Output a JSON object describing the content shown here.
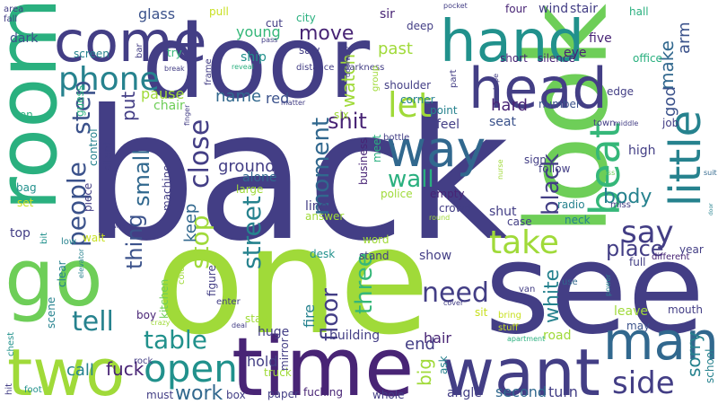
{
  "background": "#ffffff",
  "palette": {
    "indigo": "#433e85",
    "violet": "#482475",
    "blue": "#3b528b",
    "steel": "#31688e",
    "teal": "#26828e",
    "sea": "#21918c",
    "green": "#2ab07f",
    "mint": "#35b779",
    "lime": "#6ece58",
    "yellowgreen": "#a0da39",
    "yellow": "#c8e020"
  },
  "words": [
    {
      "text": "back",
      "color": "indigo"
    },
    {
      "text": "one",
      "color": "yellowgreen"
    },
    {
      "text": "door",
      "color": "indigo"
    },
    {
      "text": "see",
      "color": "indigo"
    },
    {
      "text": "look",
      "color": "lime"
    },
    {
      "text": "room",
      "color": "green"
    },
    {
      "text": "time",
      "color": "violet"
    },
    {
      "text": "want",
      "color": "indigo"
    },
    {
      "text": "hand",
      "color": "sea"
    },
    {
      "text": "go",
      "color": "lime"
    },
    {
      "text": "two",
      "color": "yellowgreen"
    },
    {
      "text": "head",
      "color": "indigo"
    },
    {
      "text": "come",
      "color": "indigo"
    },
    {
      "text": "man",
      "color": "steel"
    },
    {
      "text": "way",
      "color": "steel"
    },
    {
      "text": "open",
      "color": "sea"
    },
    {
      "text": "little",
      "color": "teal"
    },
    {
      "text": "beat",
      "color": "mint"
    },
    {
      "text": "take",
      "color": "yellowgreen"
    },
    {
      "text": "phone",
      "color": "teal"
    },
    {
      "text": "people",
      "color": "blue"
    },
    {
      "text": "step",
      "color": "blue"
    },
    {
      "text": "let",
      "color": "yellowgreen"
    },
    {
      "text": "say",
      "color": "indigo"
    },
    {
      "text": "side",
      "color": "indigo"
    },
    {
      "text": "tell",
      "color": "teal"
    },
    {
      "text": "need",
      "color": "indigo"
    },
    {
      "text": "table",
      "color": "sea"
    },
    {
      "text": "street",
      "color": "teal"
    },
    {
      "text": "floor",
      "color": "indigo"
    },
    {
      "text": "three",
      "color": "mint"
    },
    {
      "text": "wall",
      "color": "green"
    },
    {
      "text": "moment",
      "color": "steel"
    },
    {
      "text": "close",
      "color": "indigo"
    },
    {
      "text": "stop",
      "color": "yellowgreen"
    },
    {
      "text": "small",
      "color": "steel"
    },
    {
      "text": "thing",
      "color": "blue"
    },
    {
      "text": "put",
      "color": "indigo"
    },
    {
      "text": "place",
      "color": "indigo"
    },
    {
      "text": "body",
      "color": "teal"
    },
    {
      "text": "black",
      "color": "indigo"
    },
    {
      "text": "white",
      "color": "teal"
    },
    {
      "text": "make",
      "color": "steel"
    },
    {
      "text": "god",
      "color": "blue"
    },
    {
      "text": "arm",
      "color": "blue"
    },
    {
      "text": "sorry",
      "color": "teal"
    },
    {
      "text": "work",
      "color": "steel"
    },
    {
      "text": "fuck",
      "color": "violet"
    },
    {
      "text": "call",
      "color": "teal"
    },
    {
      "text": "shit",
      "color": "violet"
    },
    {
      "text": "watch",
      "color": "yellowgreen"
    },
    {
      "text": "move",
      "color": "violet"
    },
    {
      "text": "past",
      "color": "yellowgreen"
    },
    {
      "text": "name",
      "color": "steel"
    },
    {
      "text": "keep",
      "color": "steel"
    },
    {
      "text": "ground",
      "color": "indigo"
    },
    {
      "text": "young",
      "color": "mint"
    },
    {
      "text": "glass",
      "color": "blue"
    },
    {
      "text": "red",
      "color": "blue"
    },
    {
      "text": "hard",
      "color": "violet"
    },
    {
      "text": "pause",
      "color": "yellowgreen"
    },
    {
      "text": "chair",
      "color": "lime"
    },
    {
      "text": "hold",
      "color": "indigo"
    },
    {
      "text": "end",
      "color": "indigo"
    },
    {
      "text": "hair",
      "color": "violet"
    },
    {
      "text": "big",
      "color": "yellowgreen"
    },
    {
      "text": "fire",
      "color": "teal"
    },
    {
      "text": "second",
      "color": "steel"
    },
    {
      "text": "turn",
      "color": "indigo"
    },
    {
      "text": "wind",
      "color": "indigo"
    },
    {
      "text": "stair",
      "color": "indigo"
    },
    {
      "text": "four",
      "color": "violet"
    },
    {
      "text": "eye",
      "color": "violet"
    },
    {
      "text": "five",
      "color": "violet"
    },
    {
      "text": "hall",
      "color": "green"
    },
    {
      "text": "office",
      "color": "green"
    },
    {
      "text": "silence",
      "color": "violet"
    },
    {
      "text": "short",
      "color": "violet"
    },
    {
      "text": "edge",
      "color": "indigo"
    },
    {
      "text": "high",
      "color": "indigo"
    },
    {
      "text": "job",
      "color": "indigo"
    },
    {
      "text": "radio",
      "color": "teal"
    },
    {
      "text": "neck",
      "color": "teal"
    },
    {
      "text": "seat",
      "color": "blue"
    },
    {
      "text": "number",
      "color": "blue"
    },
    {
      "text": "feel",
      "color": "indigo"
    },
    {
      "text": "point",
      "color": "teal"
    },
    {
      "text": "corner",
      "color": "teal"
    },
    {
      "text": "shoulder",
      "color": "indigo"
    },
    {
      "text": "deep",
      "color": "indigo"
    },
    {
      "text": "sir",
      "color": "violet"
    },
    {
      "text": "cut",
      "color": "indigo"
    },
    {
      "text": "city",
      "color": "green"
    },
    {
      "text": "pull",
      "color": "yellow"
    },
    {
      "text": "saw",
      "color": "indigo"
    },
    {
      "text": "ship",
      "color": "sea"
    },
    {
      "text": "try",
      "color": "mint"
    },
    {
      "text": "screen",
      "color": "teal"
    },
    {
      "text": "dark",
      "color": "blue"
    },
    {
      "text": "ten",
      "color": "green"
    },
    {
      "text": "guess",
      "color": "green"
    },
    {
      "text": "bag",
      "color": "sea"
    },
    {
      "text": "set",
      "color": "yellow"
    },
    {
      "text": "top",
      "color": "indigo"
    },
    {
      "text": "wait",
      "color": "yellow"
    },
    {
      "text": "boy",
      "color": "violet"
    },
    {
      "text": "kitchen",
      "color": "lime"
    },
    {
      "text": "machine",
      "color": "indigo"
    },
    {
      "text": "silent",
      "color": "indigo"
    },
    {
      "text": "piece",
      "color": "indigo"
    },
    {
      "text": "control",
      "color": "teal"
    },
    {
      "text": "scene",
      "color": "teal"
    },
    {
      "text": "clear",
      "color": "teal"
    },
    {
      "text": "large",
      "color": "yellowgreen"
    },
    {
      "text": "alone",
      "color": "steel"
    },
    {
      "text": "line",
      "color": "indigo"
    },
    {
      "text": "answer",
      "color": "yellowgreen"
    },
    {
      "text": "police",
      "color": "yellowgreen"
    },
    {
      "text": "empty",
      "color": "violet"
    },
    {
      "text": "crowd",
      "color": "indigo"
    },
    {
      "text": "shut",
      "color": "indigo"
    },
    {
      "text": "case",
      "color": "indigo"
    },
    {
      "text": "sign",
      "color": "indigo"
    },
    {
      "text": "follow",
      "color": "indigo"
    },
    {
      "text": "meet",
      "color": "green"
    },
    {
      "text": "business",
      "color": "violet"
    },
    {
      "text": "building",
      "color": "indigo"
    },
    {
      "text": "word",
      "color": "yellowgreen"
    },
    {
      "text": "stand",
      "color": "indigo"
    },
    {
      "text": "show",
      "color": "indigo"
    },
    {
      "text": "desk",
      "color": "sea"
    },
    {
      "text": "stay",
      "color": "yellowgreen"
    },
    {
      "text": "huge",
      "color": "indigo"
    },
    {
      "text": "truck",
      "color": "yellowgreen"
    },
    {
      "text": "mirror",
      "color": "indigo"
    },
    {
      "text": "box",
      "color": "indigo"
    },
    {
      "text": "paper",
      "color": "indigo"
    },
    {
      "text": "fucking",
      "color": "violet"
    },
    {
      "text": "whole",
      "color": "indigo"
    },
    {
      "text": "angle",
      "color": "indigo"
    },
    {
      "text": "ask",
      "color": "teal"
    },
    {
      "text": "road",
      "color": "yellowgreen"
    },
    {
      "text": "leave",
      "color": "yellowgreen"
    },
    {
      "text": "may",
      "color": "blue"
    },
    {
      "text": "mouth",
      "color": "indigo"
    },
    {
      "text": "full",
      "color": "indigo"
    },
    {
      "text": "year",
      "color": "indigo"
    },
    {
      "text": "school",
      "color": "teal"
    },
    {
      "text": "different",
      "color": "violet"
    },
    {
      "text": "must",
      "color": "indigo"
    },
    {
      "text": "figure",
      "color": "indigo"
    },
    {
      "text": "enter",
      "color": "indigo"
    },
    {
      "text": "sit",
      "color": "yellow"
    },
    {
      "text": "stuff",
      "color": "yellow"
    },
    {
      "text": "bring",
      "color": "yellow"
    },
    {
      "text": "van",
      "color": "indigo"
    },
    {
      "text": "use",
      "color": "steel"
    },
    {
      "text": "hit",
      "color": "indigo"
    },
    {
      "text": "chest",
      "color": "sea"
    },
    {
      "text": "foot",
      "color": "sea"
    },
    {
      "text": "rock",
      "color": "indigo"
    },
    {
      "text": "area",
      "color": "indigo"
    },
    {
      "text": "fall",
      "color": "indigo"
    },
    {
      "text": "distance",
      "color": "indigo"
    },
    {
      "text": "darkness",
      "color": "indigo"
    },
    {
      "text": "frame",
      "color": "indigo"
    },
    {
      "text": "pass",
      "color": "indigo"
    },
    {
      "text": "break",
      "color": "indigo"
    },
    {
      "text": "reveal",
      "color": "green"
    },
    {
      "text": "doorway",
      "color": "indigo"
    },
    {
      "text": "pocket",
      "color": "indigo"
    },
    {
      "text": "tape",
      "color": "indigo"
    },
    {
      "text": "town",
      "color": "indigo"
    },
    {
      "text": "middle",
      "color": "indigo"
    },
    {
      "text": "matter",
      "color": "indigo"
    },
    {
      "text": "finger",
      "color": "indigo"
    },
    {
      "text": "bar",
      "color": "indigo"
    },
    {
      "text": "part",
      "color": "indigo"
    },
    {
      "text": "group",
      "color": "yellowgreen"
    },
    {
      "text": "six",
      "color": "yellowgreen"
    },
    {
      "text": "bottle",
      "color": "indigo"
    },
    {
      "text": "miss",
      "color": "indigo"
    },
    {
      "text": "bit",
      "color": "sea"
    },
    {
      "text": "low",
      "color": "teal"
    },
    {
      "text": "wide",
      "color": "indigo"
    },
    {
      "text": "cold",
      "color": "yellowgreen"
    },
    {
      "text": "crazy",
      "color": "yellowgreen"
    },
    {
      "text": "deal",
      "color": "indigo"
    },
    {
      "text": "round",
      "color": "yellowgreen"
    },
    {
      "text": "cover",
      "color": "indigo"
    },
    {
      "text": "apartment",
      "color": "green"
    },
    {
      "text": "elevator",
      "color": "teal"
    },
    {
      "text": "suit",
      "color": "steel"
    },
    {
      "text": "ass",
      "color": "lime"
    },
    {
      "text": "power",
      "color": "teal"
    },
    {
      "text": "nurse",
      "color": "yellowgreen"
    },
    {
      "text": "door",
      "color": "teal"
    }
  ]
}
